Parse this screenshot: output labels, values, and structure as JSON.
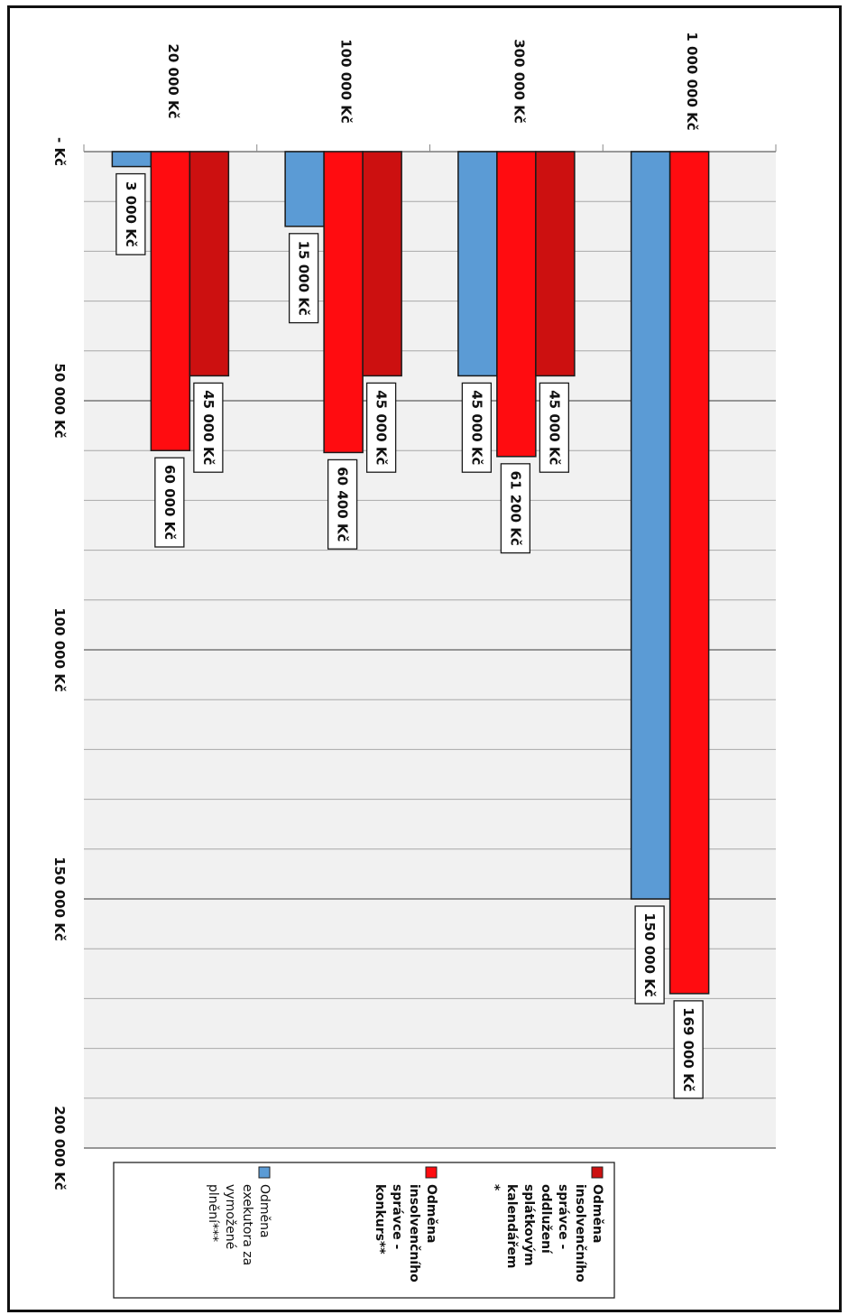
{
  "chart_data": {
    "type": "bar",
    "orientation": "horizontal",
    "categories": [
      "20 000 Kč",
      "100 000 Kč",
      "300 000 Kč",
      "1 000 000 Kč"
    ],
    "series": [
      {
        "name": "Odměna exekutora za vymožené plnění***",
        "color": "#5b9bd5",
        "values": [
          3000,
          15000,
          45000,
          150000
        ],
        "labels": [
          "3 000 Kč",
          "15 000 Kč",
          "45 000 Kč",
          "150 000 Kč"
        ]
      },
      {
        "name": "Odměna insolvenčního správce - konkurs**",
        "color": "#ff0c10",
        "values": [
          60000,
          60400,
          61200,
          169000
        ],
        "labels": [
          "60 000 Kč",
          "60 400 Kč",
          "61 200 Kč",
          "169 000 Kč"
        ]
      },
      {
        "name": "Odměna insolvenčního správce - oddlužení splátkovým kalendářem*",
        "color": "#cc1010",
        "values": [
          45000,
          45000,
          45000,
          null
        ],
        "labels": [
          "45 000 Kč",
          "45 000 Kč",
          "45 000 Kč",
          null
        ]
      }
    ],
    "axis": {
      "min": 0,
      "max": 200000,
      "major_ticks": [
        0,
        50000,
        100000,
        150000,
        200000
      ],
      "tick_labels": [
        "- Kč",
        "50 000 Kč",
        "100 000 Kč",
        "150 000 Kč",
        "200 000 Kč"
      ],
      "minor_step": 10000
    },
    "grid": true,
    "legend_position": "bottom",
    "legend": [
      {
        "series": 2,
        "lines": [
          "Odměna",
          "insolvenčního",
          "správce -",
          "oddlužení",
          "splátkovým",
          "kalendářem",
          "*"
        ],
        "bold": true
      },
      {
        "series": 1,
        "lines": [
          "Odměna",
          "insolvenčního",
          "správce -",
          "konkurs**"
        ],
        "bold": true
      },
      {
        "series": 0,
        "lines": [
          "Odměna",
          "exekutora za",
          "vymožené",
          "plnění***"
        ],
        "bold": false
      }
    ]
  }
}
